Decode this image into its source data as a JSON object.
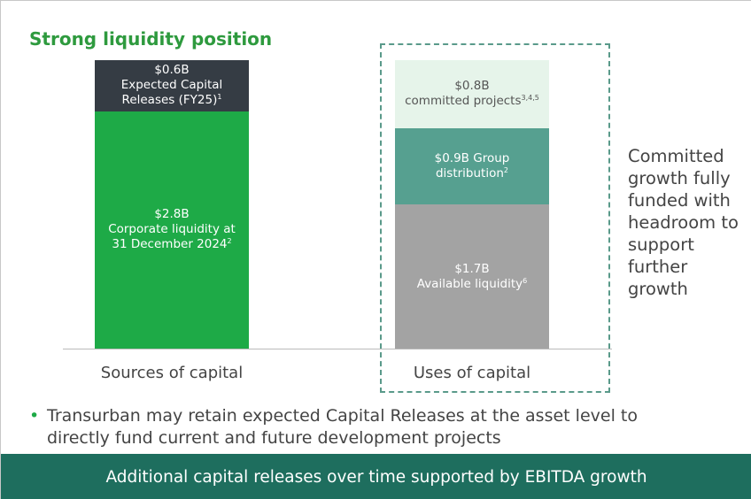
{
  "chart_data": {
    "type": "stacked_bar",
    "title": "Strong liquidity position",
    "categories": [
      "Sources of capital",
      "Uses of capital"
    ],
    "series": [
      {
        "name": "Corporate liquidity at 31 December 2024",
        "footnote": "2",
        "color": "#1eaa47",
        "values": [
          2.8,
          null
        ],
        "value_labels": [
          "$2.8B",
          null
        ]
      },
      {
        "name": "Expected Capital Releases (FY25)",
        "footnote": "1",
        "color": "#353c44",
        "values": [
          0.6,
          null
        ],
        "value_labels": [
          "$0.6B",
          null
        ]
      },
      {
        "name": "Available liquidity",
        "footnote": "6",
        "color": "#a3a3a3",
        "values": [
          null,
          1.7
        ],
        "value_labels": [
          null,
          "$1.7B"
        ]
      },
      {
        "name": "Group distribution",
        "footnote": "2",
        "color": "#56a090",
        "values": [
          null,
          0.9
        ],
        "value_labels": [
          null,
          "$0.9B"
        ]
      },
      {
        "name": "committed projects",
        "footnote": "3,4,5",
        "color": "#e6f4ea",
        "values": [
          null,
          0.8
        ],
        "value_labels": [
          null,
          "$0.8B"
        ]
      }
    ],
    "side_note": "Committed growth fully funded with headroom to support further growth",
    "bullet": "Transurban may retain expected Capital Releases at the asset level to directly fund current and future development projects",
    "footer": "Additional capital releases over time supported by EBITDA growth"
  }
}
